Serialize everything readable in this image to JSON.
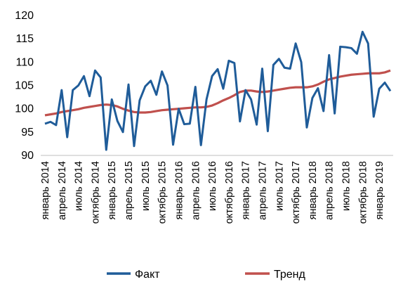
{
  "chart_data": {
    "type": "line",
    "title": "",
    "xlabel": "",
    "ylabel": "",
    "ylim": [
      90,
      120
    ],
    "yticks": [
      90,
      95,
      100,
      105,
      110,
      115,
      120
    ],
    "grid": false,
    "legend_position": "bottom",
    "x_tick_labels": [
      "январь 2014",
      "апрель 2014",
      "июль 2014",
      "октябрь 2014",
      "январь 2015",
      "апрель 2015",
      "июль 2015",
      "октябрь 2015",
      "январь 2016",
      "апрель 2016",
      "июль 2016",
      "октябрь 2016",
      "январь 2017",
      "апрель 2017",
      "июль 2017",
      "октябрь 2017",
      "январь 2018",
      "апрель 2018",
      "июль 2018",
      "октябрь 2018",
      "январь 2019"
    ],
    "x_tick_label_colors": {
      "default": "#000000"
    },
    "series": [
      {
        "name": "Факт",
        "color": "#1F5C99",
        "values": [
          96.8,
          97.2,
          96.5,
          104.0,
          93.9,
          104.0,
          105.0,
          107.0,
          102.7,
          108.2,
          106.7,
          91.2,
          102.0,
          97.4,
          95.0,
          105.2,
          92.0,
          101.8,
          104.8,
          106.0,
          103.0,
          108.0,
          105.0,
          92.3,
          100.0,
          96.7,
          96.8,
          104.7,
          92.2,
          102.0,
          107.0,
          108.5,
          104.3,
          110.3,
          109.8,
          97.3,
          104.0,
          102.0,
          96.6,
          108.6,
          95.2,
          109.4,
          110.7,
          108.8,
          108.6,
          114.0,
          110.0,
          96.0,
          102.3,
          104.4,
          99.5,
          111.5,
          99.0,
          113.3,
          113.2,
          113.0,
          111.8,
          116.5,
          114.0,
          98.3,
          104.3,
          105.6,
          103.8
        ]
      },
      {
        "name": "Тренд",
        "color": "#C0504D",
        "values": [
          98.6,
          98.8,
          99.0,
          99.3,
          99.5,
          99.7,
          99.9,
          100.2,
          100.4,
          100.6,
          100.8,
          100.9,
          100.8,
          100.5,
          100.0,
          99.6,
          99.3,
          99.2,
          99.2,
          99.3,
          99.5,
          99.7,
          99.8,
          99.9,
          100.0,
          100.1,
          100.2,
          100.3,
          100.3,
          100.4,
          100.7,
          101.2,
          101.8,
          102.3,
          102.9,
          103.6,
          103.9,
          103.9,
          103.7,
          103.6,
          103.7,
          103.9,
          104.1,
          104.3,
          104.5,
          104.6,
          104.6,
          104.6,
          104.8,
          105.2,
          105.8,
          106.3,
          106.6,
          106.9,
          107.1,
          107.3,
          107.4,
          107.5,
          107.6,
          107.6,
          107.6,
          107.8,
          108.2
        ]
      }
    ]
  }
}
